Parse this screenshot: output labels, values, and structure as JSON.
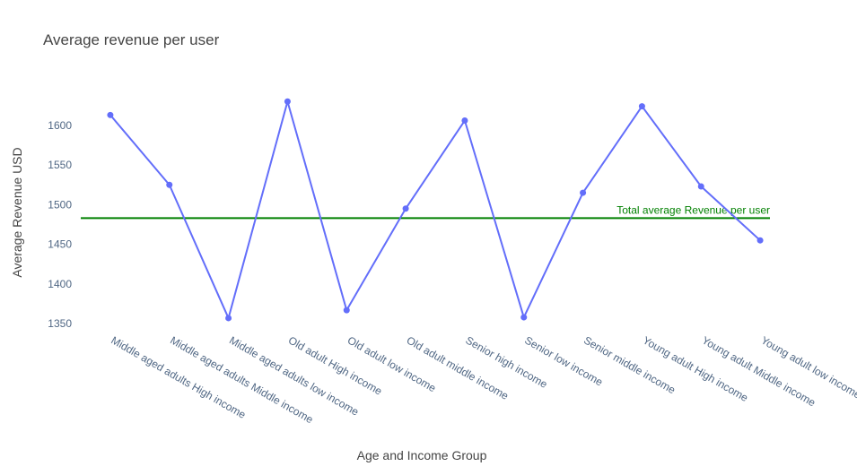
{
  "chart_data": {
    "type": "line",
    "title": "Average revenue per user",
    "xlabel": "Age and Income Group",
    "ylabel": "Average Revenue USD",
    "categories": [
      "Middle aged adults High income",
      "Middle aged adults Middle income",
      "Middle aged adults low income",
      "Old adult High income",
      "Old adult low income",
      "Old adult middle income",
      "Senior high income",
      "Senior low income",
      "Senior middle income",
      "Young adult High income",
      "Young adult Middle income",
      "Young adult low income"
    ],
    "series": [
      {
        "values": [
          1613,
          1525,
          1357,
          1630,
          1367,
          1495,
          1606,
          1358,
          1515,
          1624,
          1523,
          1455
        ],
        "color": "#636efa"
      }
    ],
    "reference_line": {
      "value": 1483,
      "label": "Total average Revenue per user",
      "color": "#008000"
    },
    "yticks": [
      1350,
      1400,
      1450,
      1500,
      1550,
      1600
    ],
    "ylim": [
      1340,
      1645
    ],
    "grid": false,
    "legend": "none"
  }
}
